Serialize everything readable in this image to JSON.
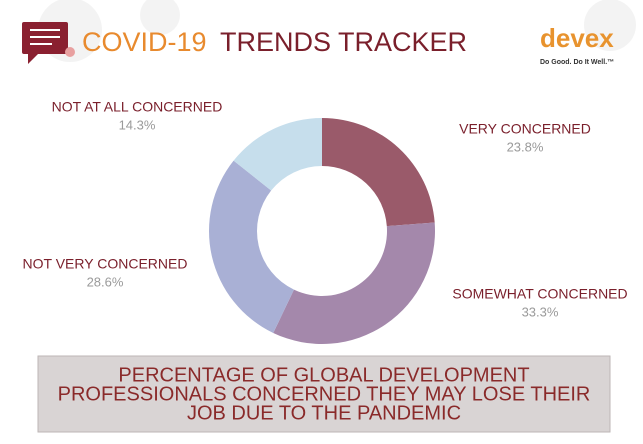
{
  "chart_data": {
    "type": "donut",
    "title_lead": "COVID-19",
    "title": "TRENDS TRACKER",
    "logo": "devex",
    "tagline": "Do Good. Do It Well.™",
    "categories": [
      "VERY CONCERNED",
      "SOMEWHAT CONCERNED",
      "NOT VERY CONCERNED",
      "NOT AT ALL CONCERNED"
    ],
    "values": [
      23.8,
      33.3,
      28.6,
      14.3
    ],
    "value_labels": [
      "23.8%",
      "33.3%",
      "28.6%",
      "14.3%"
    ],
    "colors": [
      "#9a5a6a",
      "#a488ab",
      "#a9b0d5",
      "#c6deec"
    ],
    "caption": [
      "PERCENTAGE OF GLOBAL DEVELOPMENT",
      "PROFESSIONALS CONCERNED THEY MAY LOSE THEIR",
      "JOB DUE TO THE PANDEMIC"
    ]
  }
}
